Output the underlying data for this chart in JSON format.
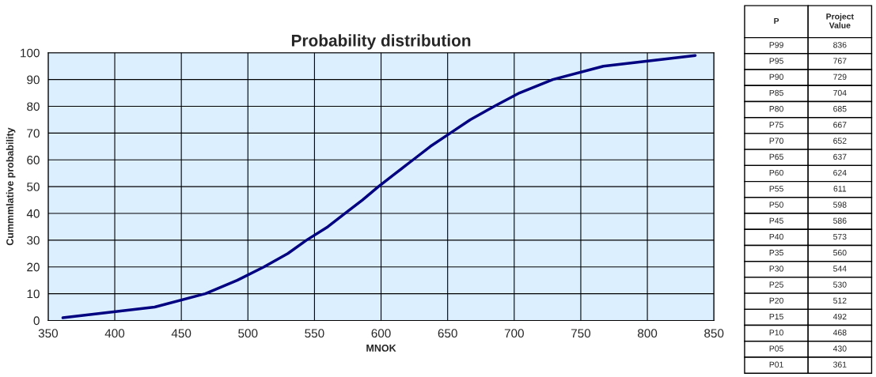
{
  "chart_data": [
    {
      "type": "line",
      "title": "Probability distribution",
      "xlabel": "MNOK",
      "ylabel": "Cummmlative probability",
      "series": [
        {
          "color": "#000080",
          "x": [
            361,
            430,
            468,
            492,
            512,
            530,
            544,
            560,
            573,
            586,
            598,
            611,
            624,
            637,
            652,
            667,
            685,
            704,
            729,
            767,
            836
          ],
          "values": [
            1,
            5,
            10,
            15,
            20,
            25,
            30,
            35,
            40,
            45,
            50,
            55,
            60,
            65,
            70,
            75,
            80,
            85,
            90,
            95,
            99
          ]
        }
      ],
      "xlim": [
        350,
        850
      ],
      "xticks": [
        350,
        400,
        450,
        500,
        550,
        600,
        650,
        700,
        750,
        800,
        850
      ],
      "ylim": [
        0,
        100
      ],
      "yticks": [
        0,
        10,
        20,
        30,
        40,
        50,
        60,
        70,
        80,
        90,
        100
      ],
      "grid": true,
      "legend": false,
      "marker": "none",
      "line_style": "solid"
    },
    {
      "type": "other",
      "xlabel": "P",
      "ylabel": "Project Value",
      "categories": [
        "P99",
        "P95",
        "P90",
        "P85",
        "P80",
        "P75",
        "P70",
        "P65",
        "P60",
        "P55",
        "P50",
        "P45",
        "P40",
        "P35",
        "P30",
        "P25",
        "P20",
        "P15",
        "P10",
        "P05",
        "P01"
      ],
      "values": [
        836,
        767,
        729,
        704,
        685,
        667,
        652,
        637,
        624,
        611,
        598,
        586,
        573,
        560,
        544,
        530,
        512,
        492,
        468,
        430,
        361
      ],
      "data_labels": true
    }
  ]
}
